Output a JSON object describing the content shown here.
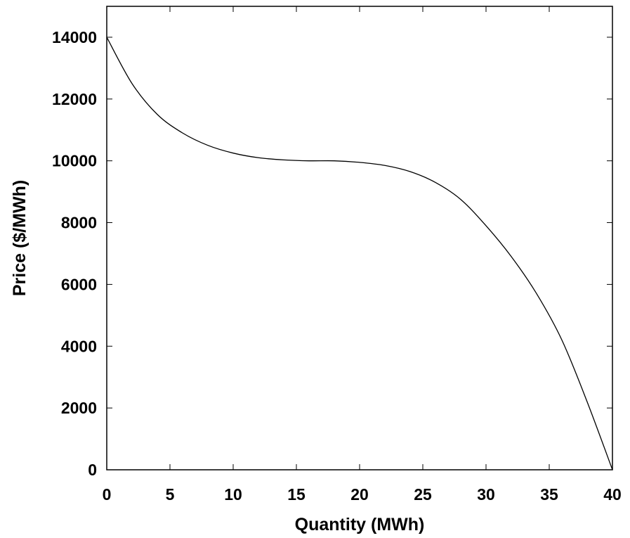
{
  "chart_data": {
    "type": "line",
    "title": "",
    "xlabel": "Quantity (MWh)",
    "ylabel": "Price ($/MWh)",
    "xlim": [
      0,
      40
    ],
    "ylim": [
      0,
      15000
    ],
    "xticks": [
      0,
      5,
      10,
      15,
      20,
      25,
      30,
      35,
      40
    ],
    "yticks": [
      0,
      2000,
      4000,
      6000,
      8000,
      10000,
      12000,
      14000
    ],
    "grid": false,
    "legend": "none",
    "line_color": "#000000",
    "series": [
      {
        "x": [
          0,
          2,
          4,
          6,
          8,
          10,
          12,
          14,
          16,
          18,
          20,
          22,
          24,
          26,
          28,
          30,
          32,
          34,
          36,
          38,
          40
        ],
        "y": [
          14000,
          12500,
          11500,
          10900,
          10500,
          10250,
          10100,
          10030,
          10000,
          10000,
          9950,
          9850,
          9650,
          9300,
          8750,
          7900,
          6900,
          5700,
          4200,
          2200,
          0
        ]
      }
    ]
  }
}
